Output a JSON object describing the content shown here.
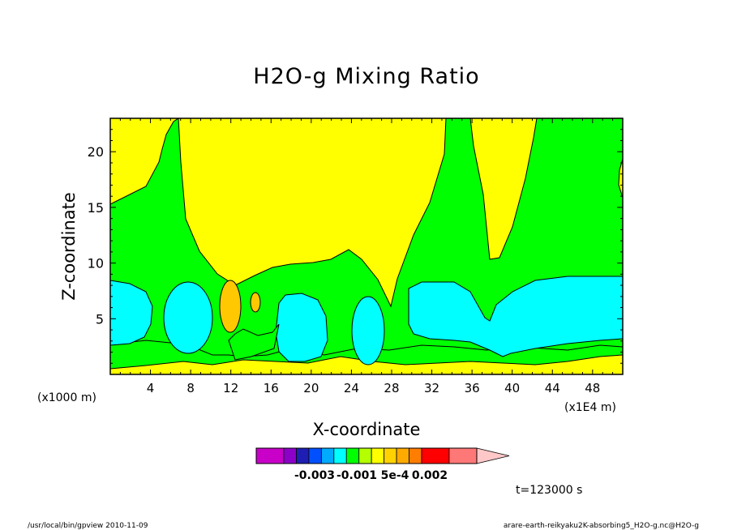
{
  "chart_data": {
    "type": "heatmap",
    "subtype": "filled-contour",
    "title": "H2O-g Mixing Ratio",
    "xlabel": "X-coordinate",
    "ylabel": "Z-coordinate",
    "x_unit_left": "(x1000 m)",
    "x_unit_right": "(x1E4 m)",
    "xlim": [
      0,
      51
    ],
    "ylim": [
      0,
      23
    ],
    "x_ticks": [
      4,
      8,
      12,
      16,
      20,
      24,
      28,
      32,
      36,
      40,
      44,
      48
    ],
    "y_ticks": [
      5,
      10,
      15,
      20
    ],
    "time_label": "t=123000 s",
    "footer_left": "/usr/local/bin/gpview   2010-11-09",
    "footer_right": "arare-earth-reikyaku2K-absorbing5_H2O-g.nc@H2O-g",
    "colorbar": {
      "colors": [
        "#c800c8",
        "#8c00c8",
        "#1e1eb4",
        "#0050ff",
        "#00aaff",
        "#00ffff",
        "#00ff00",
        "#b4ff00",
        "#ffff00",
        "#ffd200",
        "#ffaa00",
        "#ff7d00",
        "#ff0000",
        "#ff7878",
        "#ffc8c8"
      ],
      "tick_labels": [
        "-0.003",
        "-0.001",
        "5e-4",
        "0.002"
      ],
      "extend": "max"
    },
    "regions": [
      {
        "level": "green",
        "color": "#00ff00",
        "description": "background green band"
      },
      {
        "level": "yellow",
        "color": "#ffff00"
      },
      {
        "level": "cyan",
        "color": "#00ffff"
      },
      {
        "level": "orange",
        "color": "#ffc800"
      }
    ]
  }
}
